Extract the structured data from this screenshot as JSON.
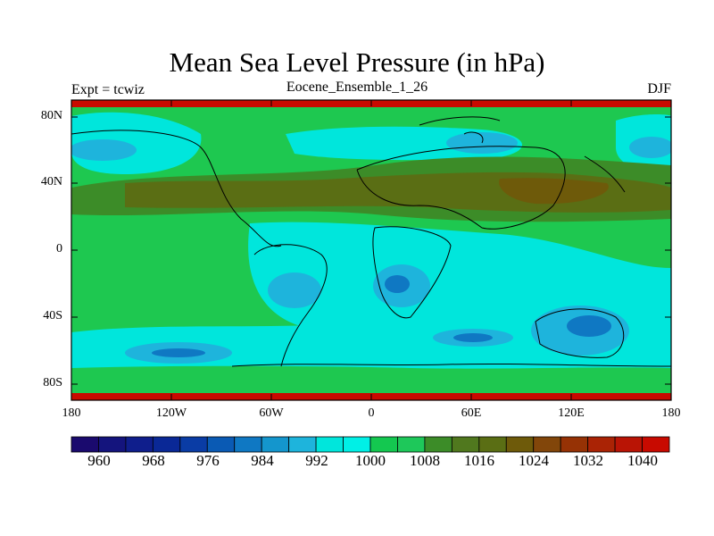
{
  "title": "Mean Sea Level Pressure (in hPa)",
  "left_label": "Expt = tcwiz",
  "center_label": "Eocene_Ensemble_1_26",
  "right_label": "DJF",
  "lat_ticks": [
    "80N",
    "40N",
    "0",
    "40S",
    "80S"
  ],
  "lon_ticks": [
    "180",
    "120W",
    "60W",
    "0",
    "60E",
    "120E",
    "180"
  ],
  "colorbar": {
    "labels": [
      "960",
      "968",
      "976",
      "984",
      "992",
      "1000",
      "1008",
      "1016",
      "1024",
      "1032",
      "1040"
    ],
    "colors": [
      "#1a0a6e",
      "#14147d",
      "#0f1e8c",
      "#0a2896",
      "#0a3ca5",
      "#0a5ab4",
      "#0f78c3",
      "#1496cd",
      "#1eb4dc",
      "#00e6dc",
      "#00f0e6",
      "#14c850",
      "#1ec85a",
      "#3c8c28",
      "#50781e",
      "#5a6e14",
      "#6e5a0a",
      "#82460a",
      "#963205",
      "#aa2305",
      "#b91405",
      "#c80a00"
    ]
  },
  "map_colors": {
    "green": "#1ec850",
    "dark_green": "#3c8c28",
    "olive": "#5a6e14",
    "brown": "#6e5a0a",
    "cyan": "#00e6dc",
    "light_blue": "#1eb4dc",
    "blue": "#0f78c3",
    "deep_blue": "#0a5ab4",
    "red": "#c80a00"
  }
}
